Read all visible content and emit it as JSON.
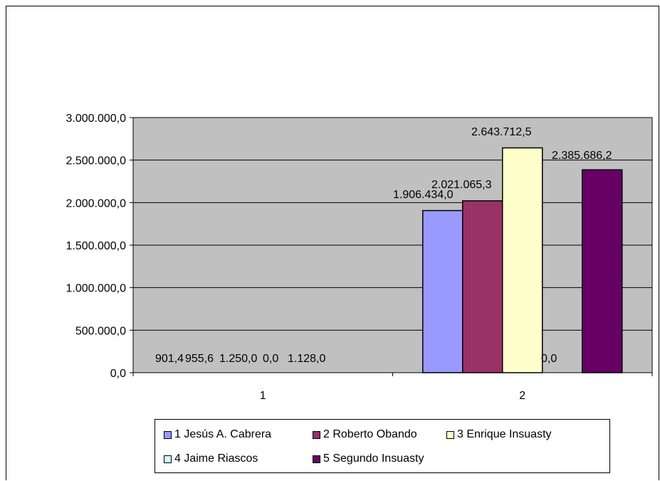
{
  "chart_data": {
    "type": "bar",
    "title": "",
    "xlabel": "",
    "ylabel": "",
    "categories": [
      "1",
      "2"
    ],
    "ylim": [
      0,
      3000000
    ],
    "y_ticks": [
      0,
      500000,
      1000000,
      1500000,
      2000000,
      2500000,
      3000000
    ],
    "y_tick_labels": [
      "0,0",
      "500.000,0",
      "1.000.000,0",
      "1.500.000,0",
      "2.000.000,0",
      "2.500.000,0",
      "3.000.000,0"
    ],
    "grid": true,
    "plot_background": "#c0c0c0",
    "legend_position": "bottom",
    "series": [
      {
        "name": "1 Jesús A. Cabrera",
        "color": "#9999ff",
        "values": [
          901.4,
          1906434.0
        ],
        "labels": [
          "901,4",
          "1.906.434,0"
        ]
      },
      {
        "name": "2 Roberto Obando",
        "color": "#993366",
        "values": [
          955.6,
          2021065.3
        ],
        "labels": [
          "955,6",
          "2.021.065,3"
        ]
      },
      {
        "name": "3 Enrique Insuasty",
        "color": "#ffffcc",
        "values": [
          1250.0,
          2643712.5
        ],
        "labels": [
          "1.250,0",
          "2.643.712,5"
        ]
      },
      {
        "name": "4 Jaime Riascos",
        "color": "#ccffff",
        "values": [
          0.0,
          0.0
        ],
        "labels": [
          "0,0",
          "0,0"
        ]
      },
      {
        "name": "5 Segundo Insuasty",
        "color": "#660066",
        "values": [
          1128.0,
          2385686.2
        ],
        "labels": [
          "1.128,0",
          "2.385.686,2"
        ]
      }
    ]
  }
}
